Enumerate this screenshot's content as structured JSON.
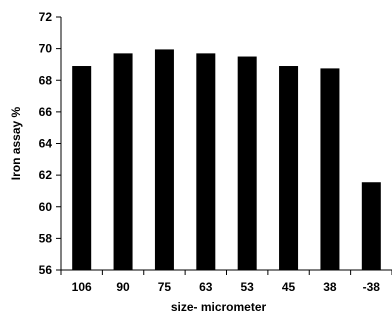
{
  "chart_data": {
    "type": "bar",
    "categories": [
      "106",
      "90",
      "75",
      "63",
      "53",
      "45",
      "38",
      "-38"
    ],
    "values": [
      68.9,
      69.7,
      69.95,
      69.7,
      69.5,
      68.9,
      68.75,
      61.55
    ],
    "title": "",
    "xlabel": "size- micrometer",
    "ylabel": "Iron assay %",
    "ylim": [
      56,
      72
    ],
    "yticks": [
      56,
      58,
      60,
      62,
      64,
      66,
      68,
      70,
      72
    ],
    "grid": false,
    "legend": "none",
    "colors": {
      "bar": "#000000",
      "axis": "#000000",
      "background": "#ffffff"
    }
  }
}
